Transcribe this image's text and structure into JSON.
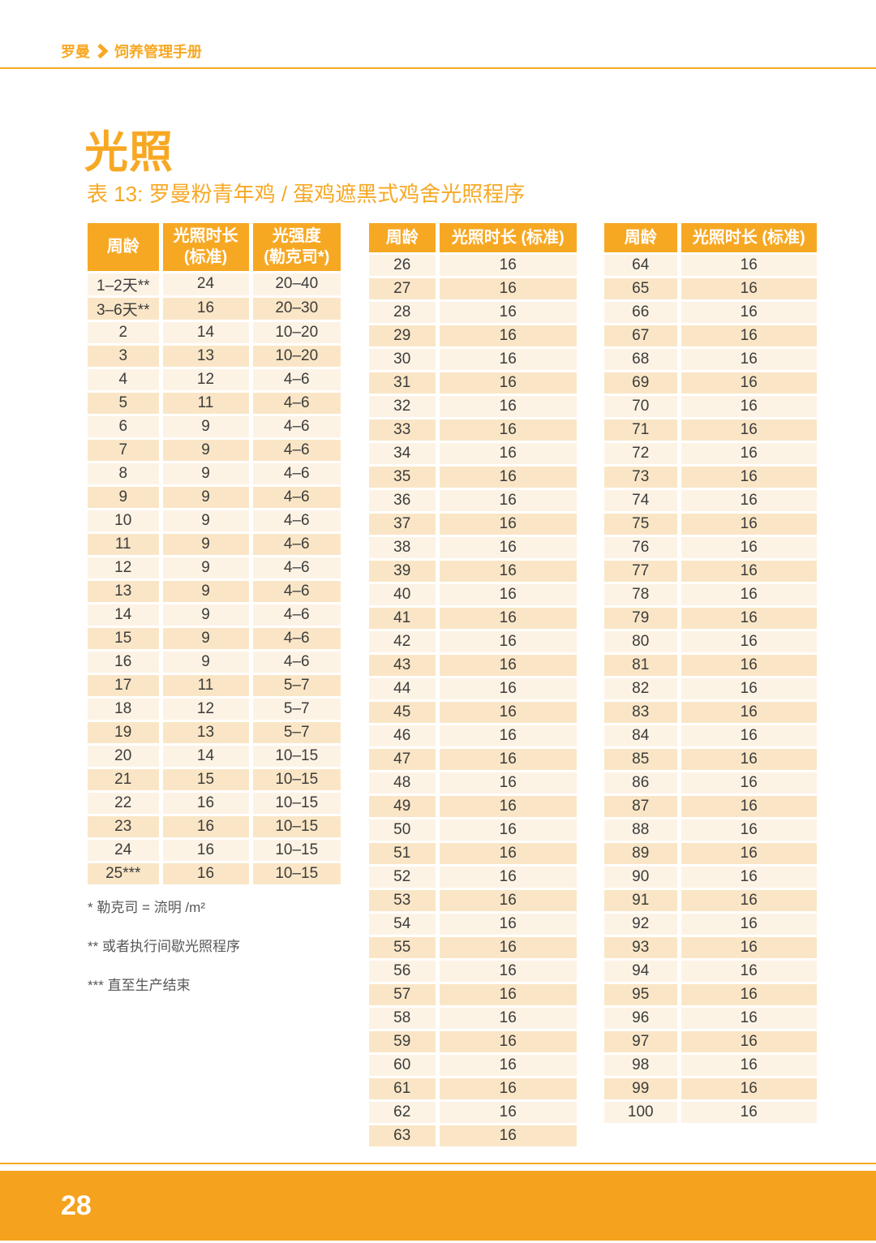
{
  "header": {
    "brand": "罗曼",
    "separator_icon": "chevron-right-icon",
    "manual": "饲养管理手册"
  },
  "title": "光照",
  "subtitle": "表 13: 罗曼粉青年鸡 / 蛋鸡遮黑式鸡舍光照程序",
  "page_number": "28",
  "colors": {
    "accent": "#F7A823",
    "footer_bar": "#F5A21F",
    "row_light": "#FDF3E5",
    "row_dark": "#FAE6C6",
    "cell_text": "#3C3C3B",
    "footnote_text": "#575756"
  },
  "tables": [
    {
      "headers": [
        [
          "周龄"
        ],
        [
          "光照时长",
          "(标准)"
        ],
        [
          "光强度",
          "(勒克司*)"
        ]
      ],
      "rows": [
        [
          "1–2天**",
          "24",
          "20–40"
        ],
        [
          "3–6天**",
          "16",
          "20–30"
        ],
        [
          "2",
          "14",
          "10–20"
        ],
        [
          "3",
          "13",
          "10–20"
        ],
        [
          "4",
          "12",
          "4–6"
        ],
        [
          "5",
          "11",
          "4–6"
        ],
        [
          "6",
          "9",
          "4–6"
        ],
        [
          "7",
          "9",
          "4–6"
        ],
        [
          "8",
          "9",
          "4–6"
        ],
        [
          "9",
          "9",
          "4–6"
        ],
        [
          "10",
          "9",
          "4–6"
        ],
        [
          "11",
          "9",
          "4–6"
        ],
        [
          "12",
          "9",
          "4–6"
        ],
        [
          "13",
          "9",
          "4–6"
        ],
        [
          "14",
          "9",
          "4–6"
        ],
        [
          "15",
          "9",
          "4–6"
        ],
        [
          "16",
          "9",
          "4–6"
        ],
        [
          "17",
          "11",
          "5–7"
        ],
        [
          "18",
          "12",
          "5–7"
        ],
        [
          "19",
          "13",
          "5–7"
        ],
        [
          "20",
          "14",
          "10–15"
        ],
        [
          "21",
          "15",
          "10–15"
        ],
        [
          "22",
          "16",
          "10–15"
        ],
        [
          "23",
          "16",
          "10–15"
        ],
        [
          "24",
          "16",
          "10–15"
        ],
        [
          "25***",
          "16",
          "10–15"
        ]
      ]
    },
    {
      "headers": [
        [
          "周龄"
        ],
        [
          "光照时长 (标准)"
        ]
      ],
      "rows": [
        [
          "26",
          "16"
        ],
        [
          "27",
          "16"
        ],
        [
          "28",
          "16"
        ],
        [
          "29",
          "16"
        ],
        [
          "30",
          "16"
        ],
        [
          "31",
          "16"
        ],
        [
          "32",
          "16"
        ],
        [
          "33",
          "16"
        ],
        [
          "34",
          "16"
        ],
        [
          "35",
          "16"
        ],
        [
          "36",
          "16"
        ],
        [
          "37",
          "16"
        ],
        [
          "38",
          "16"
        ],
        [
          "39",
          "16"
        ],
        [
          "40",
          "16"
        ],
        [
          "41",
          "16"
        ],
        [
          "42",
          "16"
        ],
        [
          "43",
          "16"
        ],
        [
          "44",
          "16"
        ],
        [
          "45",
          "16"
        ],
        [
          "46",
          "16"
        ],
        [
          "47",
          "16"
        ],
        [
          "48",
          "16"
        ],
        [
          "49",
          "16"
        ],
        [
          "50",
          "16"
        ],
        [
          "51",
          "16"
        ],
        [
          "52",
          "16"
        ],
        [
          "53",
          "16"
        ],
        [
          "54",
          "16"
        ],
        [
          "55",
          "16"
        ],
        [
          "56",
          "16"
        ],
        [
          "57",
          "16"
        ],
        [
          "58",
          "16"
        ],
        [
          "59",
          "16"
        ],
        [
          "60",
          "16"
        ],
        [
          "61",
          "16"
        ],
        [
          "62",
          "16"
        ],
        [
          "63",
          "16"
        ]
      ]
    },
    {
      "headers": [
        [
          "周龄"
        ],
        [
          "光照时长 (标准)"
        ]
      ],
      "rows": [
        [
          "64",
          "16"
        ],
        [
          "65",
          "16"
        ],
        [
          "66",
          "16"
        ],
        [
          "67",
          "16"
        ],
        [
          "68",
          "16"
        ],
        [
          "69",
          "16"
        ],
        [
          "70",
          "16"
        ],
        [
          "71",
          "16"
        ],
        [
          "72",
          "16"
        ],
        [
          "73",
          "16"
        ],
        [
          "74",
          "16"
        ],
        [
          "75",
          "16"
        ],
        [
          "76",
          "16"
        ],
        [
          "77",
          "16"
        ],
        [
          "78",
          "16"
        ],
        [
          "79",
          "16"
        ],
        [
          "80",
          "16"
        ],
        [
          "81",
          "16"
        ],
        [
          "82",
          "16"
        ],
        [
          "83",
          "16"
        ],
        [
          "84",
          "16"
        ],
        [
          "85",
          "16"
        ],
        [
          "86",
          "16"
        ],
        [
          "87",
          "16"
        ],
        [
          "88",
          "16"
        ],
        [
          "89",
          "16"
        ],
        [
          "90",
          "16"
        ],
        [
          "91",
          "16"
        ],
        [
          "92",
          "16"
        ],
        [
          "93",
          "16"
        ],
        [
          "94",
          "16"
        ],
        [
          "95",
          "16"
        ],
        [
          "96",
          "16"
        ],
        [
          "97",
          "16"
        ],
        [
          "98",
          "16"
        ],
        [
          "99",
          "16"
        ],
        [
          "100",
          "16"
        ]
      ]
    }
  ],
  "footnotes": [
    "* 勒克司 = 流明 /m²",
    "** 或者执行间歇光照程序",
    "*** 直至生产结束"
  ]
}
